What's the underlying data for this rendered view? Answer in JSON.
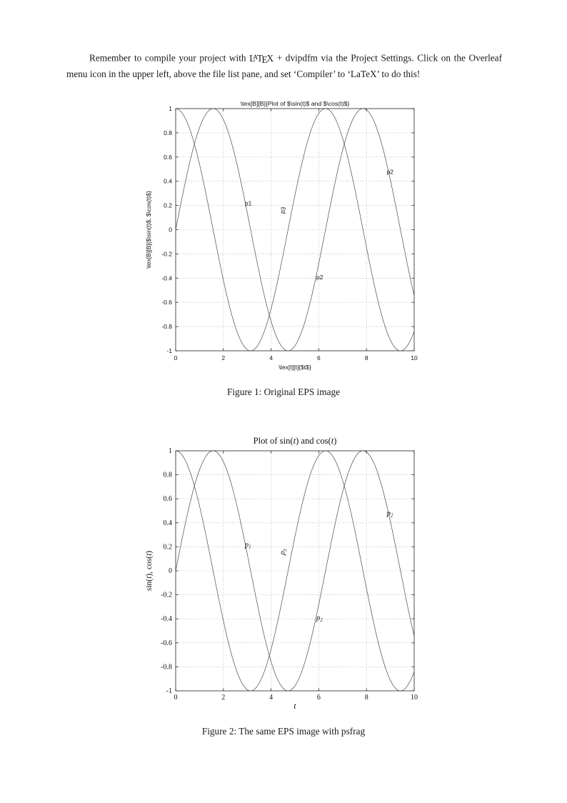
{
  "document": {
    "paragraph": {
      "before_logo": "Remember to compile your project with ",
      "logo": {
        "L": "L",
        "A": "A",
        "T": "T",
        "E": "E",
        "X": "X"
      },
      "after_logo": " + dvipdfm via the Project Settings. Click on the Overleaf menu icon in the upper left, above the file list pane, and set ‘Compiler’ to ‘LaTeX’ to do this!"
    },
    "figure1_caption": "Figure 1: Original EPS image",
    "figure2_caption": "Figure 2: The same EPS image with psfrag"
  },
  "chart_data": [
    {
      "type": "line",
      "title": "\\tex[B][B]{Plot of $\\sin(t)$ and $\\cos(t)$}",
      "xlabel": "\\tex[t][t]{$t$}",
      "ylabel": "\\tex[B][B]{$\\sin(t)$, $\\cos(t)$}",
      "xlim": [
        0,
        10
      ],
      "ylim": [
        -1,
        1
      ],
      "xticks": [
        0,
        2,
        4,
        6,
        8,
        10
      ],
      "xtick_labels": [
        "0",
        "2",
        "4",
        "6",
        "8",
        "10"
      ],
      "yticks": [
        1,
        0.8,
        0.6,
        0.4,
        0.2,
        0,
        -0.2,
        -0.4,
        -0.6,
        -0.8,
        -1
      ],
      "ytick_labels": [
        "1",
        "0.8",
        "0.6",
        "0.4",
        "0.2",
        "0",
        "-0.2",
        "-0.4",
        "-0.6",
        "-0.8",
        "-1"
      ],
      "grid": true,
      "legend": "none",
      "series": [
        {
          "name": "sin(t)",
          "fn": "sin"
        },
        {
          "name": "cos(t)",
          "fn": "cos"
        }
      ],
      "annotations": [
        {
          "text": "p1",
          "x": 2.9,
          "y": 0.2,
          "rotation": 0
        },
        {
          "text": "p3",
          "x": 4.55,
          "y": 0.13,
          "rotation": -78
        },
        {
          "text": "p2",
          "x": 5.9,
          "y": -0.41,
          "rotation": 0
        },
        {
          "text": "p2",
          "x": 8.85,
          "y": 0.46,
          "rotation": 0
        }
      ],
      "label_style": "plain"
    },
    {
      "type": "line",
      "title": "Plot of sin(t) and cos(t)",
      "xlabel": "t",
      "ylabel": "sin(t), cos(t)",
      "xlim": [
        0,
        10
      ],
      "ylim": [
        -1,
        1
      ],
      "xticks": [
        0,
        2,
        4,
        6,
        8,
        10
      ],
      "xtick_labels": [
        "0",
        "2",
        "4",
        "6",
        "8",
        "10"
      ],
      "yticks": [
        1,
        0.8,
        0.6,
        0.4,
        0.2,
        0,
        -0.2,
        -0.4,
        -0.6,
        -0.8,
        -1
      ],
      "ytick_labels": [
        "1",
        "0.8",
        "0.6",
        "0.4",
        "0.2",
        "0",
        "-0.2",
        "-0.4",
        "-0.6",
        "-0.8",
        "-1"
      ],
      "grid": true,
      "legend": "none",
      "series": [
        {
          "name": "sin(t)",
          "fn": "sin"
        },
        {
          "name": "cos(t)",
          "fn": "cos"
        }
      ],
      "annotations": [
        {
          "text": "p1",
          "x": 2.9,
          "y": 0.2,
          "rotation": 0
        },
        {
          "text": "p3",
          "x": 4.55,
          "y": 0.13,
          "rotation": -78
        },
        {
          "text": "p2",
          "x": 5.9,
          "y": -0.41,
          "rotation": 0
        },
        {
          "text": "p2",
          "x": 8.85,
          "y": 0.46,
          "rotation": 0
        }
      ],
      "label_style": "italic-sub"
    }
  ]
}
